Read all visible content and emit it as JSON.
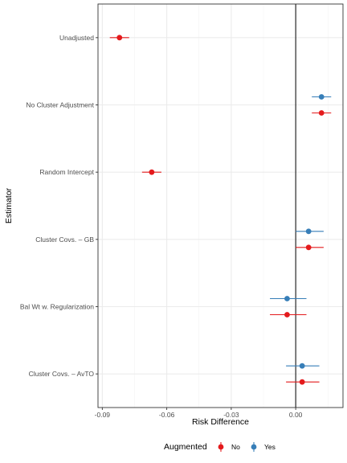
{
  "chart_data": {
    "type": "scatter",
    "subtype": "dot-and-whisker",
    "title": "",
    "xlabel": "Risk Difference",
    "ylabel": "Estimator",
    "xlim": [
      -0.092,
      0.022
    ],
    "x_ticks": [
      -0.09,
      -0.06,
      -0.03,
      0.0
    ],
    "x_tick_labels": [
      "-0.09",
      "-0.06",
      "-0.03",
      "0.00"
    ],
    "reference_line_x": 0,
    "grid": true,
    "categories": [
      "Unadjusted",
      "No Cluster Adjustment",
      "Random Intercept",
      "Cluster Covs. – GB",
      "Bal Wt w. Regularization",
      "Cluster Covs. – AvTO"
    ],
    "legend": {
      "title": "Augmented",
      "position": "bottom",
      "entries": [
        {
          "label": "No",
          "color": "#e41a1c"
        },
        {
          "label": "Yes",
          "color": "#377eb8"
        }
      ]
    },
    "series": [
      {
        "name": "No",
        "color": "#e41a1c",
        "points": [
          {
            "category": "Unadjusted",
            "estimate": -0.082,
            "lower": -0.0865,
            "upper": -0.0775
          },
          {
            "category": "No Cluster Adjustment",
            "estimate": 0.012,
            "lower": 0.0075,
            "upper": 0.0165
          },
          {
            "category": "Random Intercept",
            "estimate": -0.067,
            "lower": -0.0715,
            "upper": -0.0625
          },
          {
            "category": "Cluster Covs. – GB",
            "estimate": 0.006,
            "lower": 0.0,
            "upper": 0.013
          },
          {
            "category": "Bal Wt w. Regularization",
            "estimate": -0.004,
            "lower": -0.012,
            "upper": 0.005
          },
          {
            "category": "Cluster Covs. – AvTO",
            "estimate": 0.003,
            "lower": -0.0045,
            "upper": 0.011
          }
        ]
      },
      {
        "name": "Yes",
        "color": "#377eb8",
        "points": [
          {
            "category": "No Cluster Adjustment",
            "estimate": 0.012,
            "lower": 0.0075,
            "upper": 0.0165
          },
          {
            "category": "Cluster Covs. – GB",
            "estimate": 0.006,
            "lower": 0.0,
            "upper": 0.013
          },
          {
            "category": "Bal Wt w. Regularization",
            "estimate": -0.004,
            "lower": -0.012,
            "upper": 0.005
          },
          {
            "category": "Cluster Covs. – AvTO",
            "estimate": 0.003,
            "lower": -0.0045,
            "upper": 0.011
          }
        ]
      }
    ]
  }
}
